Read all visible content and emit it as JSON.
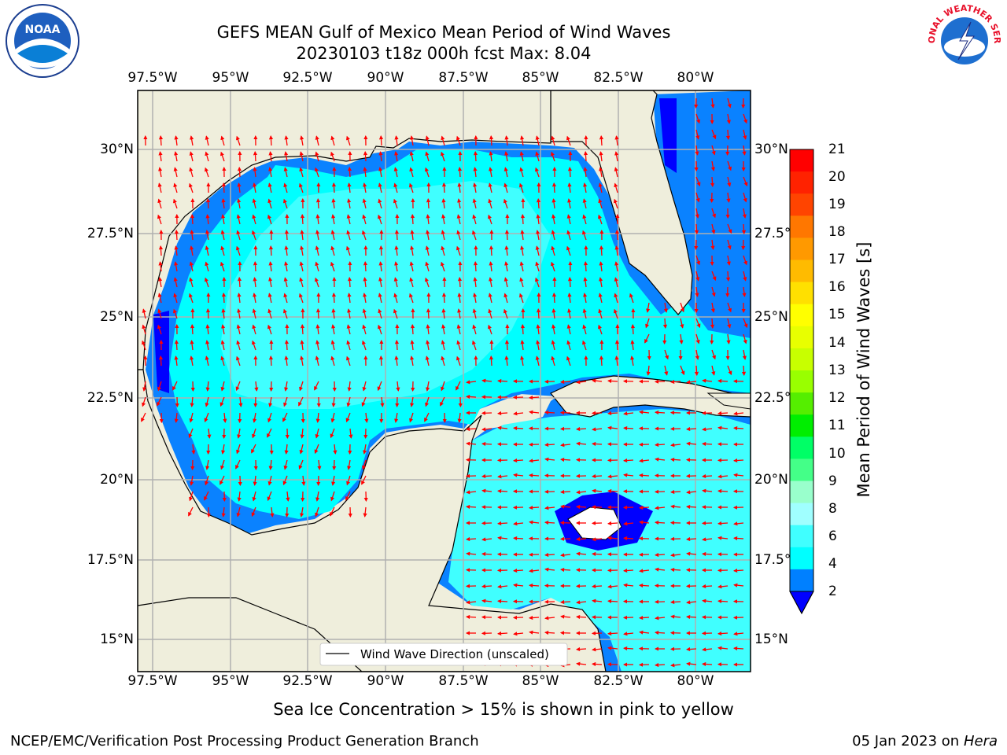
{
  "title": {
    "line1": "GEFS MEAN Gulf of Mexico Mean Period of Wind Waves",
    "line2": "20230103 t18z 000h fcst   Max: 8.04"
  },
  "map": {
    "lon_labels": [
      "97.5°W",
      "95°W",
      "92.5°W",
      "90°W",
      "87.5°W",
      "85°W",
      "82.5°W",
      "80°W"
    ],
    "lat_labels": [
      "30°N",
      "27.5°N",
      "25°N",
      "22.5°N",
      "20°N",
      "17.5°N",
      "15°N"
    ],
    "legend_label": "Wind Wave Direction (unscaled)",
    "colors": {
      "land": "#efeedc",
      "ocean_2_4": "#0a82ff",
      "ocean_4_6": "#00ffff",
      "ocean_6_8": "#40ffff",
      "ocean_lt2": "#0000ff",
      "arrow": "#ff0000",
      "grid": "#b0b0b0"
    }
  },
  "colorbar": {
    "label": "Mean Period of Wind Waves [s]",
    "ticks": [
      "21",
      "20",
      "19",
      "18",
      "17",
      "16",
      "15",
      "14",
      "13",
      "12",
      "11",
      "10",
      "9",
      "8",
      "6",
      "4",
      "2"
    ],
    "colors": [
      "#ff0000",
      "#ff2200",
      "#ff4400",
      "#ff7700",
      "#ff9900",
      "#ffbb00",
      "#ffe000",
      "#ffff00",
      "#e8ff00",
      "#c8ff00",
      "#99ff00",
      "#55ee00",
      "#00ee00",
      "#00ff66",
      "#44ff88",
      "#99ffcc",
      "#a0ffff",
      "#40ffff",
      "#00ffff",
      "#0080ff",
      "#0000ff"
    ]
  },
  "caption": "Sea Ice Concentration > 15% is shown in pink to yellow",
  "footer": {
    "left": "NCEP/EMC/Verification Post Processing Product Generation Branch",
    "right_date": "05 Jan 2023 on ",
    "right_host": "Hera"
  },
  "logos": {
    "noaa_text": "NOAA",
    "nws_text": "NATIONAL WEATHER SERVICE"
  }
}
